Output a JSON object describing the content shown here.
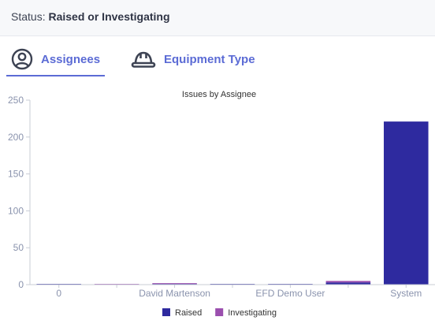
{
  "status": {
    "label": "Status:",
    "value": "Raised or Investigating"
  },
  "tabs": [
    {
      "label": "Assignees",
      "icon": "user-circle-icon",
      "active": true
    },
    {
      "label": "Equipment Type",
      "icon": "hard-hat-icon",
      "active": false
    }
  ],
  "colors": {
    "accent": "#5b6bd5",
    "raised": "#2e2a9f",
    "investigating": "#9b4fae"
  },
  "chart_data": {
    "type": "bar",
    "stacked": true,
    "title": "Issues by Assignee",
    "categories": [
      "0",
      "",
      "David Martenson",
      "",
      "EFD Demo User",
      "",
      "System"
    ],
    "series": [
      {
        "name": "Raised",
        "values": [
          1,
          0,
          1,
          1,
          1,
          3,
          221
        ]
      },
      {
        "name": "Investigating",
        "values": [
          0,
          1,
          1,
          0,
          0,
          2,
          0
        ]
      }
    ],
    "y_ticks": [
      "0",
      "50",
      "100",
      "150",
      "200",
      "250"
    ],
    "ylim": [
      0,
      250
    ],
    "legend_position": "bottom",
    "grid": false
  }
}
